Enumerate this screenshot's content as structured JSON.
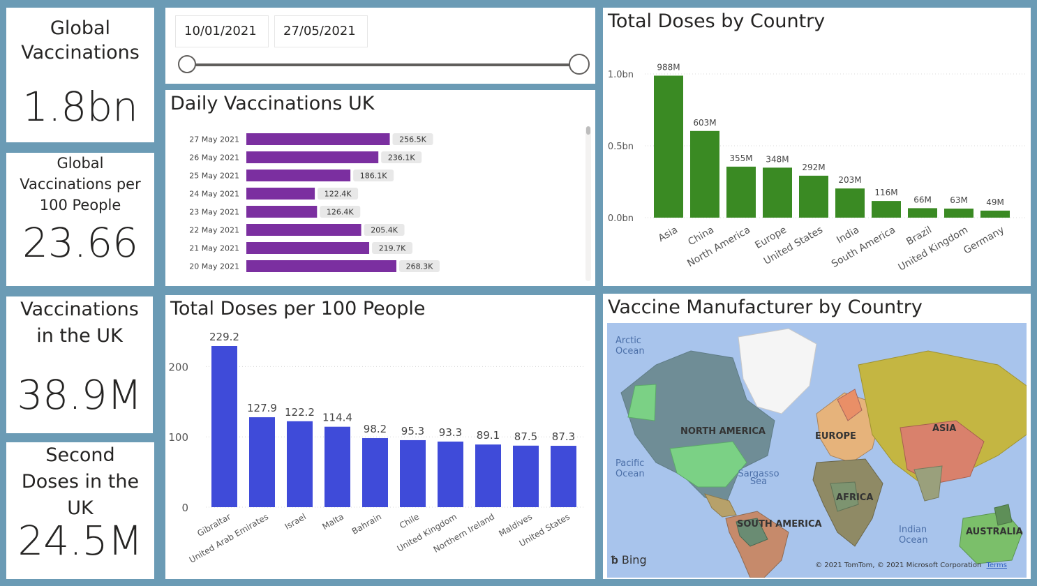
{
  "kpis": [
    {
      "title": "Global Vaccinations",
      "value": "1.8bn"
    },
    {
      "title": "Global Vaccinations per 100 People",
      "value": "23.66"
    },
    {
      "title": "Vaccinations in the UK",
      "value": "38.9M"
    },
    {
      "title": "Second Doses in the UK",
      "value": "24.5M"
    }
  ],
  "date_slicer": {
    "start": "10/01/2021",
    "end": "27/05/2021"
  },
  "colors": {
    "background": "#6b9bb5",
    "daily_bars": "#7b2fa0",
    "country_bars": "#3a8a23",
    "per100_bars": "#3f4bd9",
    "label_bg": "#e8e8e8"
  },
  "map": {
    "title": "Vaccine Manufacturer by Country",
    "labels": {
      "arctic": "Arctic Ocean",
      "north_america": "NORTH AMERICA",
      "pacific": "Pacific Ocean",
      "sargasso": "Sargasso Sea",
      "europe": "EUROPE",
      "asia": "ASIA",
      "africa": "AFRICA",
      "south_america": "SOUTH AMERICA",
      "indian": "Indian Ocean",
      "australia": "AUSTRALIA"
    },
    "bing": "Bing",
    "copyright": "© 2021 TomTom, © 2021 Microsoft Corporation",
    "terms": "Terms"
  },
  "chart_data": [
    {
      "type": "bar",
      "orientation": "horizontal",
      "title": "Daily Vaccinations UK",
      "categories": [
        "27 May 2021",
        "26 May 2021",
        "25 May 2021",
        "24 May 2021",
        "23 May 2021",
        "22 May 2021",
        "21 May 2021",
        "20 May 2021"
      ],
      "values": [
        256.5,
        236.1,
        186.1,
        122.4,
        126.4,
        205.4,
        219.7,
        268.3
      ],
      "labels": [
        "256.5K",
        "236.1K",
        "186.1K",
        "122.4K",
        "126.4K",
        "205.4K",
        "219.7K",
        "268.3K"
      ],
      "xlim": [
        0,
        300
      ]
    },
    {
      "type": "bar",
      "title": "Total Doses by Country",
      "categories": [
        "Asia",
        "China",
        "North America",
        "Europe",
        "United States",
        "India",
        "South America",
        "Brazil",
        "United Kingdom",
        "Germany"
      ],
      "values": [
        988,
        603,
        355,
        348,
        292,
        203,
        116,
        66,
        63,
        49
      ],
      "labels": [
        "988M",
        "603M",
        "355M",
        "348M",
        "292M",
        "203M",
        "116M",
        "66M",
        "63M",
        "49M"
      ],
      "yticks": [
        "0.0bn",
        "0.5bn",
        "1.0bn"
      ],
      "ylim": [
        0,
        1000
      ],
      "grid": true
    },
    {
      "type": "bar",
      "title": "Total Doses per 100 People",
      "categories": [
        "Gibraltar",
        "United Arab Emirates",
        "Israel",
        "Malta",
        "Bahrain",
        "Chile",
        "United Kingdom",
        "Northern Ireland",
        "Maldives",
        "United States"
      ],
      "values": [
        229.2,
        127.9,
        122.2,
        114.4,
        98.2,
        95.3,
        93.3,
        89.1,
        87.5,
        87.3
      ],
      "labels": [
        "229.2",
        "127.9",
        "122.2",
        "114.4",
        "98.2",
        "95.3",
        "93.3",
        "89.1",
        "87.5",
        "87.3"
      ],
      "yticks": [
        "0",
        "100",
        "200"
      ],
      "ylim": [
        0,
        229.2
      ],
      "grid": true
    }
  ]
}
